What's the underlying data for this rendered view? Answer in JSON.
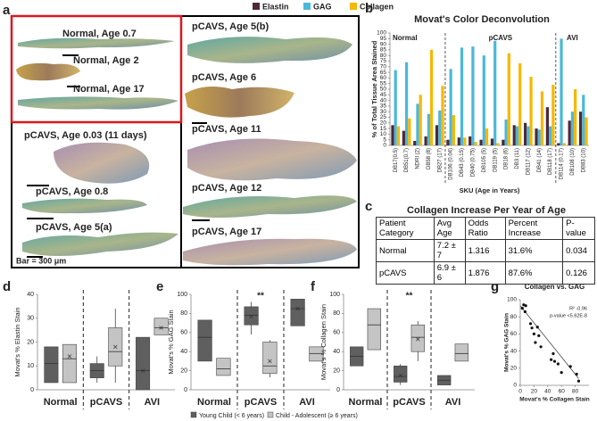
{
  "panel_letters": [
    "a",
    "b",
    "c",
    "d",
    "e",
    "f",
    "g"
  ],
  "figure_a": {
    "labels": [
      "Normal, Age 0.7",
      "Normal, Age 2",
      "Normal, Age 17",
      "pCAVS, Age 0.03 (11 days)",
      "pCAVS, Age 0.8",
      "pCAVS, Age 5(a)",
      "pCAVS, Age 5(b)",
      "pCAVS, Age 6",
      "pCAVS, Age 11",
      "pCAVS, Age 12",
      "pCAVS, Age 17"
    ],
    "scale_bar": "Bar = 300 μm"
  },
  "table_c": {
    "title": "Collagen Increase Per Year of Age",
    "header": [
      "Patient Category",
      "Avg Age",
      "Odds Ratio",
      "Percent Increase",
      "P-value"
    ],
    "rows": [
      [
        "Normal",
        "7.2 ± 7",
        "1.316",
        "31.6%",
        "0.034"
      ],
      [
        "pCAVS",
        "6.9 ± 6",
        "1.876",
        "87.6%",
        "0.126"
      ]
    ]
  },
  "box_legend": [
    {
      "name": "Young Child (< 6 years)",
      "color": "#5f5f5f"
    },
    {
      "name": "Child - Adolescent (≥ 6 years)",
      "color": "#c4c4c4"
    }
  ],
  "chart_data": [
    {
      "type": "bar",
      "title": "Movat's Color Deconvolution",
      "ylabel": "% of Total Tissue Area Stained",
      "xlabel": "SKU (Age in Years)",
      "categories": [
        "DB17(0.5)",
        "DB51(0.7)",
        "NDRI (2)",
        "DB58 (8)",
        "DB27 (17)",
        "DB106 (0.04)",
        "DB43 (0.15)",
        "DB40 (0.75)",
        "DB105 (5)",
        "DB119 (5)",
        "DB18 (6)",
        "DB3 (11)",
        "DB117 (12)",
        "DB41 (14)",
        "DB118 (17)",
        "DB114 (0.17)",
        "DB108 (10)",
        "DB83 (10)"
      ],
      "groups": [
        {
          "name": "Normal",
          "count": 5
        },
        {
          "name": "pCAVS",
          "count": 10
        },
        {
          "name": "AVI",
          "count": 3
        }
      ],
      "series": [
        {
          "name": "Elastin",
          "color": "#4d2838",
          "values": [
            18,
            13,
            4,
            8,
            18,
            5,
            7,
            8,
            5,
            6,
            5,
            18,
            20,
            15,
            34,
            2,
            22,
            30
          ]
        },
        {
          "name": "GAG",
          "color": "#4bb8d8",
          "values": [
            67,
            74,
            37,
            28,
            31,
            68,
            87,
            88,
            80,
            93,
            23,
            17,
            17,
            14,
            17,
            95,
            30,
            45
          ]
        },
        {
          "name": "Collagen",
          "color": "#f5b800",
          "values": [
            17,
            24,
            45,
            85,
            53,
            27,
            7,
            3,
            15,
            2,
            82,
            73,
            61,
            48,
            54,
            2,
            50,
            25
          ]
        }
      ],
      "ylim": [
        0,
        100
      ],
      "yticks": [
        0,
        5,
        10,
        15,
        20,
        25,
        30,
        35,
        40,
        45,
        50,
        55,
        60,
        65,
        70,
        75,
        80,
        85,
        90,
        95,
        100
      ]
    },
    {
      "type": "box",
      "ylabel": "Movat's % Elastin Stain",
      "groups": [
        "Normal",
        "pCAVS",
        "AVI"
      ],
      "ylim": [
        0,
        40
      ],
      "yticks": [
        0,
        10,
        20,
        30,
        40
      ],
      "series": [
        {
          "color": "#5f5f5f",
          "boxes": [
            {
              "q1": 3,
              "median": 11,
              "q3": 18
            },
            {
              "min": 3,
              "q1": 5,
              "median": 8,
              "q3": 11,
              "max": 14
            },
            {
              "q1": 0,
              "median": 8,
              "q3": 22,
              "mean": 8
            }
          ]
        },
        {
          "color": "#c4c4c4",
          "boxes": [
            {
              "q1": 3,
              "median": 13,
              "q3": 19,
              "mean": 14
            },
            {
              "min": 3,
              "q1": 10,
              "median": 16,
              "q3": 26,
              "max": 34,
              "mean": 18
            },
            {
              "q1": 23,
              "median": 26,
              "q3": 30,
              "mean": 26
            }
          ]
        }
      ],
      "annotations": []
    },
    {
      "type": "box",
      "ylabel": "Movat's % GAG Stain",
      "groups": [
        "Normal",
        "pCAVS",
        "AVI"
      ],
      "ylim": [
        0,
        100
      ],
      "yticks": [
        0,
        20,
        40,
        60,
        80,
        100
      ],
      "series": [
        {
          "color": "#5f5f5f",
          "boxes": [
            {
              "q1": 30,
              "median": 55,
              "q3": 73
            },
            {
              "min": 58,
              "q1": 68,
              "median": 78,
              "q3": 87,
              "max": 92,
              "mean": 77
            },
            {
              "q1": 67,
              "median": 85,
              "q3": 95,
              "mean": 85
            }
          ]
        },
        {
          "color": "#c4c4c4",
          "boxes": [
            {
              "q1": 15,
              "median": 22,
              "q3": 33
            },
            {
              "min": 13,
              "q1": 17,
              "median": 25,
              "q3": 50,
              "max": 52,
              "mean": 30
            },
            {
              "q1": 30,
              "median": 38,
              "q3": 45
            }
          ]
        }
      ],
      "annotations": [
        {
          "text": "**",
          "group": 1
        }
      ]
    },
    {
      "type": "box",
      "ylabel": "Movat's % Collagen Stain",
      "groups": [
        "Normal",
        "pCAVS",
        "AVI"
      ],
      "ylim": [
        0,
        100
      ],
      "yticks": [
        0,
        20,
        40,
        60,
        80,
        100
      ],
      "series": [
        {
          "color": "#5f5f5f",
          "boxes": [
            {
              "q1": 25,
              "median": 35,
              "q3": 45
            },
            {
              "min": 5,
              "q1": 8,
              "median": 14,
              "q3": 25,
              "max": 27,
              "mean": 15
            },
            {
              "q1": 5,
              "median": 10,
              "q3": 15
            }
          ]
        },
        {
          "color": "#c4c4c4",
          "boxes": [
            {
              "q1": 42,
              "median": 68,
              "q3": 85
            },
            {
              "min": 30,
              "q1": 40,
              "median": 55,
              "q3": 68,
              "max": 72,
              "mean": 53
            },
            {
              "q1": 30,
              "median": 38,
              "q3": 48
            }
          ]
        }
      ],
      "annotations": [
        {
          "text": "**",
          "group": 1
        }
      ]
    },
    {
      "type": "scatter",
      "title": "Collagen vs. GAG",
      "xlabel": "Movat's % Collagen Stain",
      "ylabel": "Movat's % GAG Stain",
      "color": "#111111",
      "x": [
        3,
        5,
        7,
        8,
        15,
        17,
        20,
        22,
        25,
        27,
        30,
        45,
        48,
        50,
        55,
        60,
        73,
        82,
        85
      ],
      "y": [
        90,
        94,
        86,
        93,
        72,
        67,
        60,
        50,
        68,
        58,
        45,
        30,
        37,
        28,
        25,
        15,
        22,
        13,
        5
      ],
      "trendline": {
        "x": [
          0,
          85
        ],
        "y": [
          93,
          8
        ]
      },
      "annotations": [
        "R² -0.96",
        "p-value <5.62E-8"
      ],
      "xlim": [
        0,
        100
      ],
      "ylim": [
        0,
        100
      ],
      "xticks": [
        0,
        20,
        40,
        60,
        80
      ],
      "yticks": [
        0,
        20,
        40,
        60,
        80,
        100
      ]
    }
  ]
}
